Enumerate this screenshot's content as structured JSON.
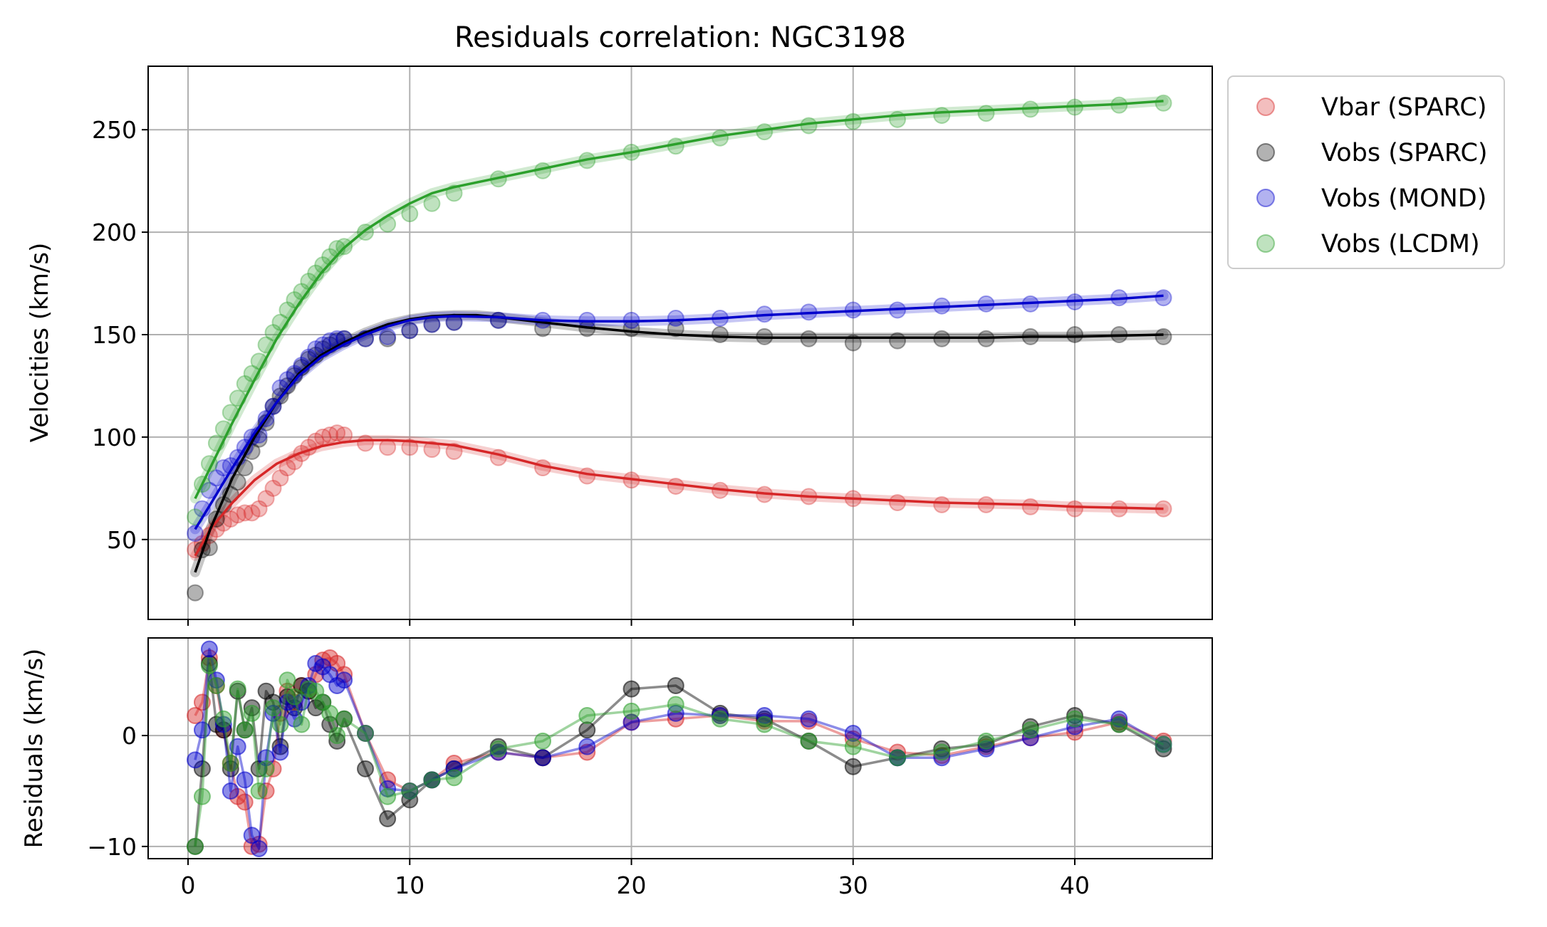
{
  "chart_data": {
    "type": "scatter",
    "title": "Residuals correlation: NGC3198",
    "colors": {
      "Vbar (SPARC)": "#d62728",
      "Vobs (SPARC)": "#000000",
      "Vobs (MOND)": "#0000cc",
      "Vobs (LCDM)": "#2ca02c"
    },
    "legend": {
      "placement": "outside-top-right",
      "entries": [
        "Vbar (SPARC)",
        "Vobs (SPARC)",
        "Vobs (MOND)",
        "Vobs (LCDM)"
      ]
    },
    "grid": true,
    "top_panel": {
      "ylabel": "Velocities (km/s)",
      "xlim": [
        -1.8,
        46.2
      ],
      "ylim": [
        11,
        281
      ],
      "yticks": [
        50,
        100,
        150,
        200,
        250
      ],
      "x": [
        0.32,
        0.64,
        0.96,
        1.28,
        1.6,
        1.92,
        2.24,
        2.56,
        2.88,
        3.2,
        3.52,
        3.84,
        4.16,
        4.48,
        4.8,
        5.12,
        5.44,
        5.76,
        6.08,
        6.4,
        6.72,
        7.04,
        8.0,
        9.0,
        10.0,
        11.0,
        12.0,
        14.0,
        16.0,
        18.0,
        20.0,
        22.0,
        24.0,
        26.0,
        28.0,
        30.0,
        32.0,
        34.0,
        36.0,
        38.0,
        40.0,
        42.0,
        44.0
      ],
      "series": [
        {
          "name": "Vbar (SPARC)",
          "values": [
            45,
            48,
            52,
            55,
            58,
            60,
            62,
            63,
            63,
            65,
            70,
            75,
            80,
            85,
            88,
            92,
            95,
            98,
            100,
            101,
            102,
            101,
            97,
            95,
            95,
            94,
            93,
            90,
            85,
            81,
            79,
            76,
            74,
            72,
            71,
            70,
            68,
            67,
            67,
            66,
            65,
            65,
            65
          ],
          "fit": [
            [
              0.32,
              42
            ],
            [
              1,
              55
            ],
            [
              2,
              68
            ],
            [
              3,
              79
            ],
            [
              4,
              87
            ],
            [
              5,
              92
            ],
            [
              6,
              95.5
            ],
            [
              7,
              97.5
            ],
            [
              8,
              98.5
            ],
            [
              9,
              98.5
            ],
            [
              10,
              98
            ],
            [
              12,
              96
            ],
            [
              14,
              91.5
            ],
            [
              16,
              86
            ],
            [
              18,
              82
            ],
            [
              20,
              79.5
            ],
            [
              22,
              77
            ],
            [
              24,
              74.5
            ],
            [
              26,
              72.5
            ],
            [
              28,
              71
            ],
            [
              30,
              70
            ],
            [
              32,
              69
            ],
            [
              34,
              68
            ],
            [
              36,
              67.5
            ],
            [
              38,
              67
            ],
            [
              40,
              66
            ],
            [
              42,
              65.5
            ],
            [
              44,
              65
            ]
          ]
        },
        {
          "name": "Vobs (SPARC)",
          "values": [
            24,
            45,
            46,
            60,
            67,
            72,
            78,
            85,
            93,
            99,
            107,
            115,
            120,
            125,
            130,
            134,
            138,
            140,
            143,
            145,
            147,
            148,
            148,
            148,
            152,
            155,
            156,
            157,
            153,
            153,
            153,
            153,
            150,
            149,
            148,
            146,
            147,
            148,
            148,
            149,
            150,
            150,
            149
          ],
          "fit": [
            [
              0.32,
              34
            ],
            [
              1,
              55
            ],
            [
              2,
              80
            ],
            [
              3,
              100
            ],
            [
              4,
              117
            ],
            [
              5,
              131
            ],
            [
              6,
              140
            ],
            [
              7,
              146
            ],
            [
              8,
              151
            ],
            [
              9,
              155
            ],
            [
              10,
              157.5
            ],
            [
              11,
              159
            ],
            [
              12,
              159.5
            ],
            [
              13,
              159.5
            ],
            [
              14,
              158.5
            ],
            [
              16,
              156
            ],
            [
              18,
              153.5
            ],
            [
              20,
              151.5
            ],
            [
              22,
              150
            ],
            [
              24,
              149
            ],
            [
              26,
              148.5
            ],
            [
              28,
              148.5
            ],
            [
              30,
              148.5
            ],
            [
              32,
              148.5
            ],
            [
              34,
              148.5
            ],
            [
              36,
              148.5
            ],
            [
              38,
              149
            ],
            [
              40,
              149
            ],
            [
              42,
              149.5
            ],
            [
              44,
              150
            ]
          ]
        },
        {
          "name": "Vobs (MOND)",
          "values": [
            53,
            65,
            74,
            80,
            85,
            86,
            90,
            95,
            100,
            101,
            109,
            115,
            124,
            128,
            131,
            135,
            139,
            143,
            145,
            147,
            148,
            148,
            148,
            149,
            152,
            155,
            156,
            157,
            157,
            157,
            157,
            158,
            158,
            160,
            161,
            162,
            162,
            164,
            165,
            165,
            166,
            168,
            168
          ],
          "fit": [
            [
              0.32,
              55
            ],
            [
              1,
              67
            ],
            [
              2,
              85
            ],
            [
              3,
              102
            ],
            [
              4,
              117
            ],
            [
              5,
              130
            ],
            [
              6,
              139
            ],
            [
              7,
              145
            ],
            [
              8,
              150
            ],
            [
              9,
              154
            ],
            [
              10,
              157
            ],
            [
              11,
              158.5
            ],
            [
              12,
              159
            ],
            [
              14,
              158.5
            ],
            [
              16,
              157
            ],
            [
              18,
              156.5
            ],
            [
              20,
              156.5
            ],
            [
              22,
              157
            ],
            [
              24,
              158
            ],
            [
              26,
              159.5
            ],
            [
              28,
              160.5
            ],
            [
              30,
              161.5
            ],
            [
              32,
              162.5
            ],
            [
              34,
              163.5
            ],
            [
              36,
              164.5
            ],
            [
              38,
              165.5
            ],
            [
              40,
              166.5
            ],
            [
              42,
              167.5
            ],
            [
              44,
              169
            ]
          ]
        },
        {
          "name": "Vobs (LCDM)",
          "values": [
            61,
            77,
            87,
            97,
            104,
            112,
            119,
            126,
            131,
            137,
            145,
            151,
            156,
            162,
            167,
            171,
            176,
            180,
            184,
            188,
            192,
            193,
            200,
            204,
            209,
            214,
            219,
            226,
            230,
            235,
            239,
            242,
            246,
            249,
            252,
            254,
            255,
            257,
            258,
            260,
            261,
            262,
            263
          ],
          "fit": [
            [
              0.32,
              70
            ],
            [
              1,
              85
            ],
            [
              2,
              107
            ],
            [
              3,
              128
            ],
            [
              4,
              148
            ],
            [
              5,
              165
            ],
            [
              6,
              180
            ],
            [
              7,
              192
            ],
            [
              8,
              201
            ],
            [
              9,
              208
            ],
            [
              10,
              214
            ],
            [
              11,
              219
            ],
            [
              12,
              222
            ],
            [
              14,
              226.5
            ],
            [
              16,
              231
            ],
            [
              18,
              235.5
            ],
            [
              20,
              239
            ],
            [
              22,
              243
            ],
            [
              24,
              247
            ],
            [
              26,
              250
            ],
            [
              28,
              253
            ],
            [
              30,
              255
            ],
            [
              32,
              257
            ],
            [
              34,
              258.5
            ],
            [
              36,
              259.5
            ],
            [
              38,
              260.5
            ],
            [
              40,
              261.5
            ],
            [
              42,
              262.5
            ],
            [
              44,
              264
            ]
          ]
        }
      ]
    },
    "bottom_panel": {
      "ylabel": "Residuals (km/s)",
      "xlim": [
        -1.8,
        46.2
      ],
      "ylim": [
        -11.1,
        8.8
      ],
      "xticks": [
        0,
        10,
        20,
        30,
        40
      ],
      "yticks": [
        -10,
        0
      ],
      "x": [
        0.32,
        0.64,
        0.96,
        1.28,
        1.6,
        1.92,
        2.24,
        2.56,
        2.88,
        3.2,
        3.52,
        3.84,
        4.16,
        4.48,
        4.8,
        5.12,
        5.44,
        5.76,
        6.08,
        6.4,
        6.72,
        7.04,
        8.0,
        9.0,
        10.0,
        11.0,
        12.0,
        14.0,
        16.0,
        18.0,
        20.0,
        22.0,
        24.0,
        26.0,
        28.0,
        30.0,
        32.0,
        34.0,
        36.0,
        38.0,
        40.0,
        42.0,
        44.0
      ],
      "series": [
        {
          "name": "Vbar (SPARC)",
          "values": [
            1.8,
            3.0,
            7.0,
            4.5,
            0.5,
            -2.5,
            -5.5,
            -6.0,
            -10.0,
            -9.8,
            -5.0,
            -3.0,
            2.0,
            4.0,
            3.0,
            4.5,
            4.0,
            5.5,
            6.8,
            7.0,
            6.5,
            5.5,
            0.2,
            -4.0,
            -5.0,
            -4.0,
            -2.5,
            -1.5,
            -2.0,
            -1.5,
            1.2,
            1.5,
            1.8,
            1.3,
            1.3,
            -0.3,
            -1.5,
            -1.8,
            -1.0,
            -0.2,
            0.3,
            1.2,
            -0.5
          ]
        },
        {
          "name": "Vobs (SPARC)",
          "values": [
            -10.0,
            -3.0,
            6.5,
            1.0,
            0.5,
            -3.0,
            4.0,
            0.5,
            2.5,
            -3.0,
            4.0,
            3.0,
            -1.0,
            3.5,
            2.5,
            4.5,
            4.0,
            2.5,
            3.0,
            1.0,
            -0.5,
            1.5,
            -3.0,
            -7.5,
            -5.8,
            -4.0,
            -3.0,
            -1.0,
            -2.0,
            0.5,
            4.2,
            4.5,
            2.0,
            1.5,
            -0.5,
            -2.8,
            -2.0,
            -1.2,
            -0.8,
            0.8,
            1.8,
            1.0,
            -1.2
          ]
        },
        {
          "name": "Vobs (MOND)",
          "values": [
            -2.2,
            0.5,
            7.8,
            5.0,
            1.0,
            -5.0,
            -1.0,
            -4.0,
            -9.0,
            -10.2,
            -2.0,
            2.0,
            -1.5,
            3.0,
            1.5,
            3.0,
            4.5,
            6.5,
            6.2,
            5.5,
            4.5,
            5.0,
            0.2,
            -4.8,
            -5.0,
            -4.0,
            -3.0,
            -1.5,
            -2.0,
            -1.0,
            1.2,
            2.0,
            1.8,
            1.8,
            1.5,
            0.2,
            -2.0,
            -2.0,
            -1.2,
            -0.2,
            0.8,
            1.5,
            -0.8
          ]
        },
        {
          "name": "Vobs (LCDM)",
          "values": [
            -10.0,
            -5.5,
            6.3,
            4.5,
            1.5,
            -2.5,
            4.2,
            0.5,
            2.0,
            -5.0,
            -3.0,
            2.5,
            1.0,
            5.0,
            3.5,
            1.0,
            4.2,
            4.0,
            3.0,
            2.0,
            0.0,
            1.5,
            0.2,
            -5.5,
            -5.0,
            -4.0,
            -3.8,
            -1.2,
            -0.5,
            1.8,
            2.2,
            2.8,
            1.5,
            1.0,
            -0.5,
            -1.0,
            -2.0,
            -1.5,
            -0.5,
            0.5,
            1.5,
            1.0,
            -0.8
          ]
        }
      ]
    }
  }
}
